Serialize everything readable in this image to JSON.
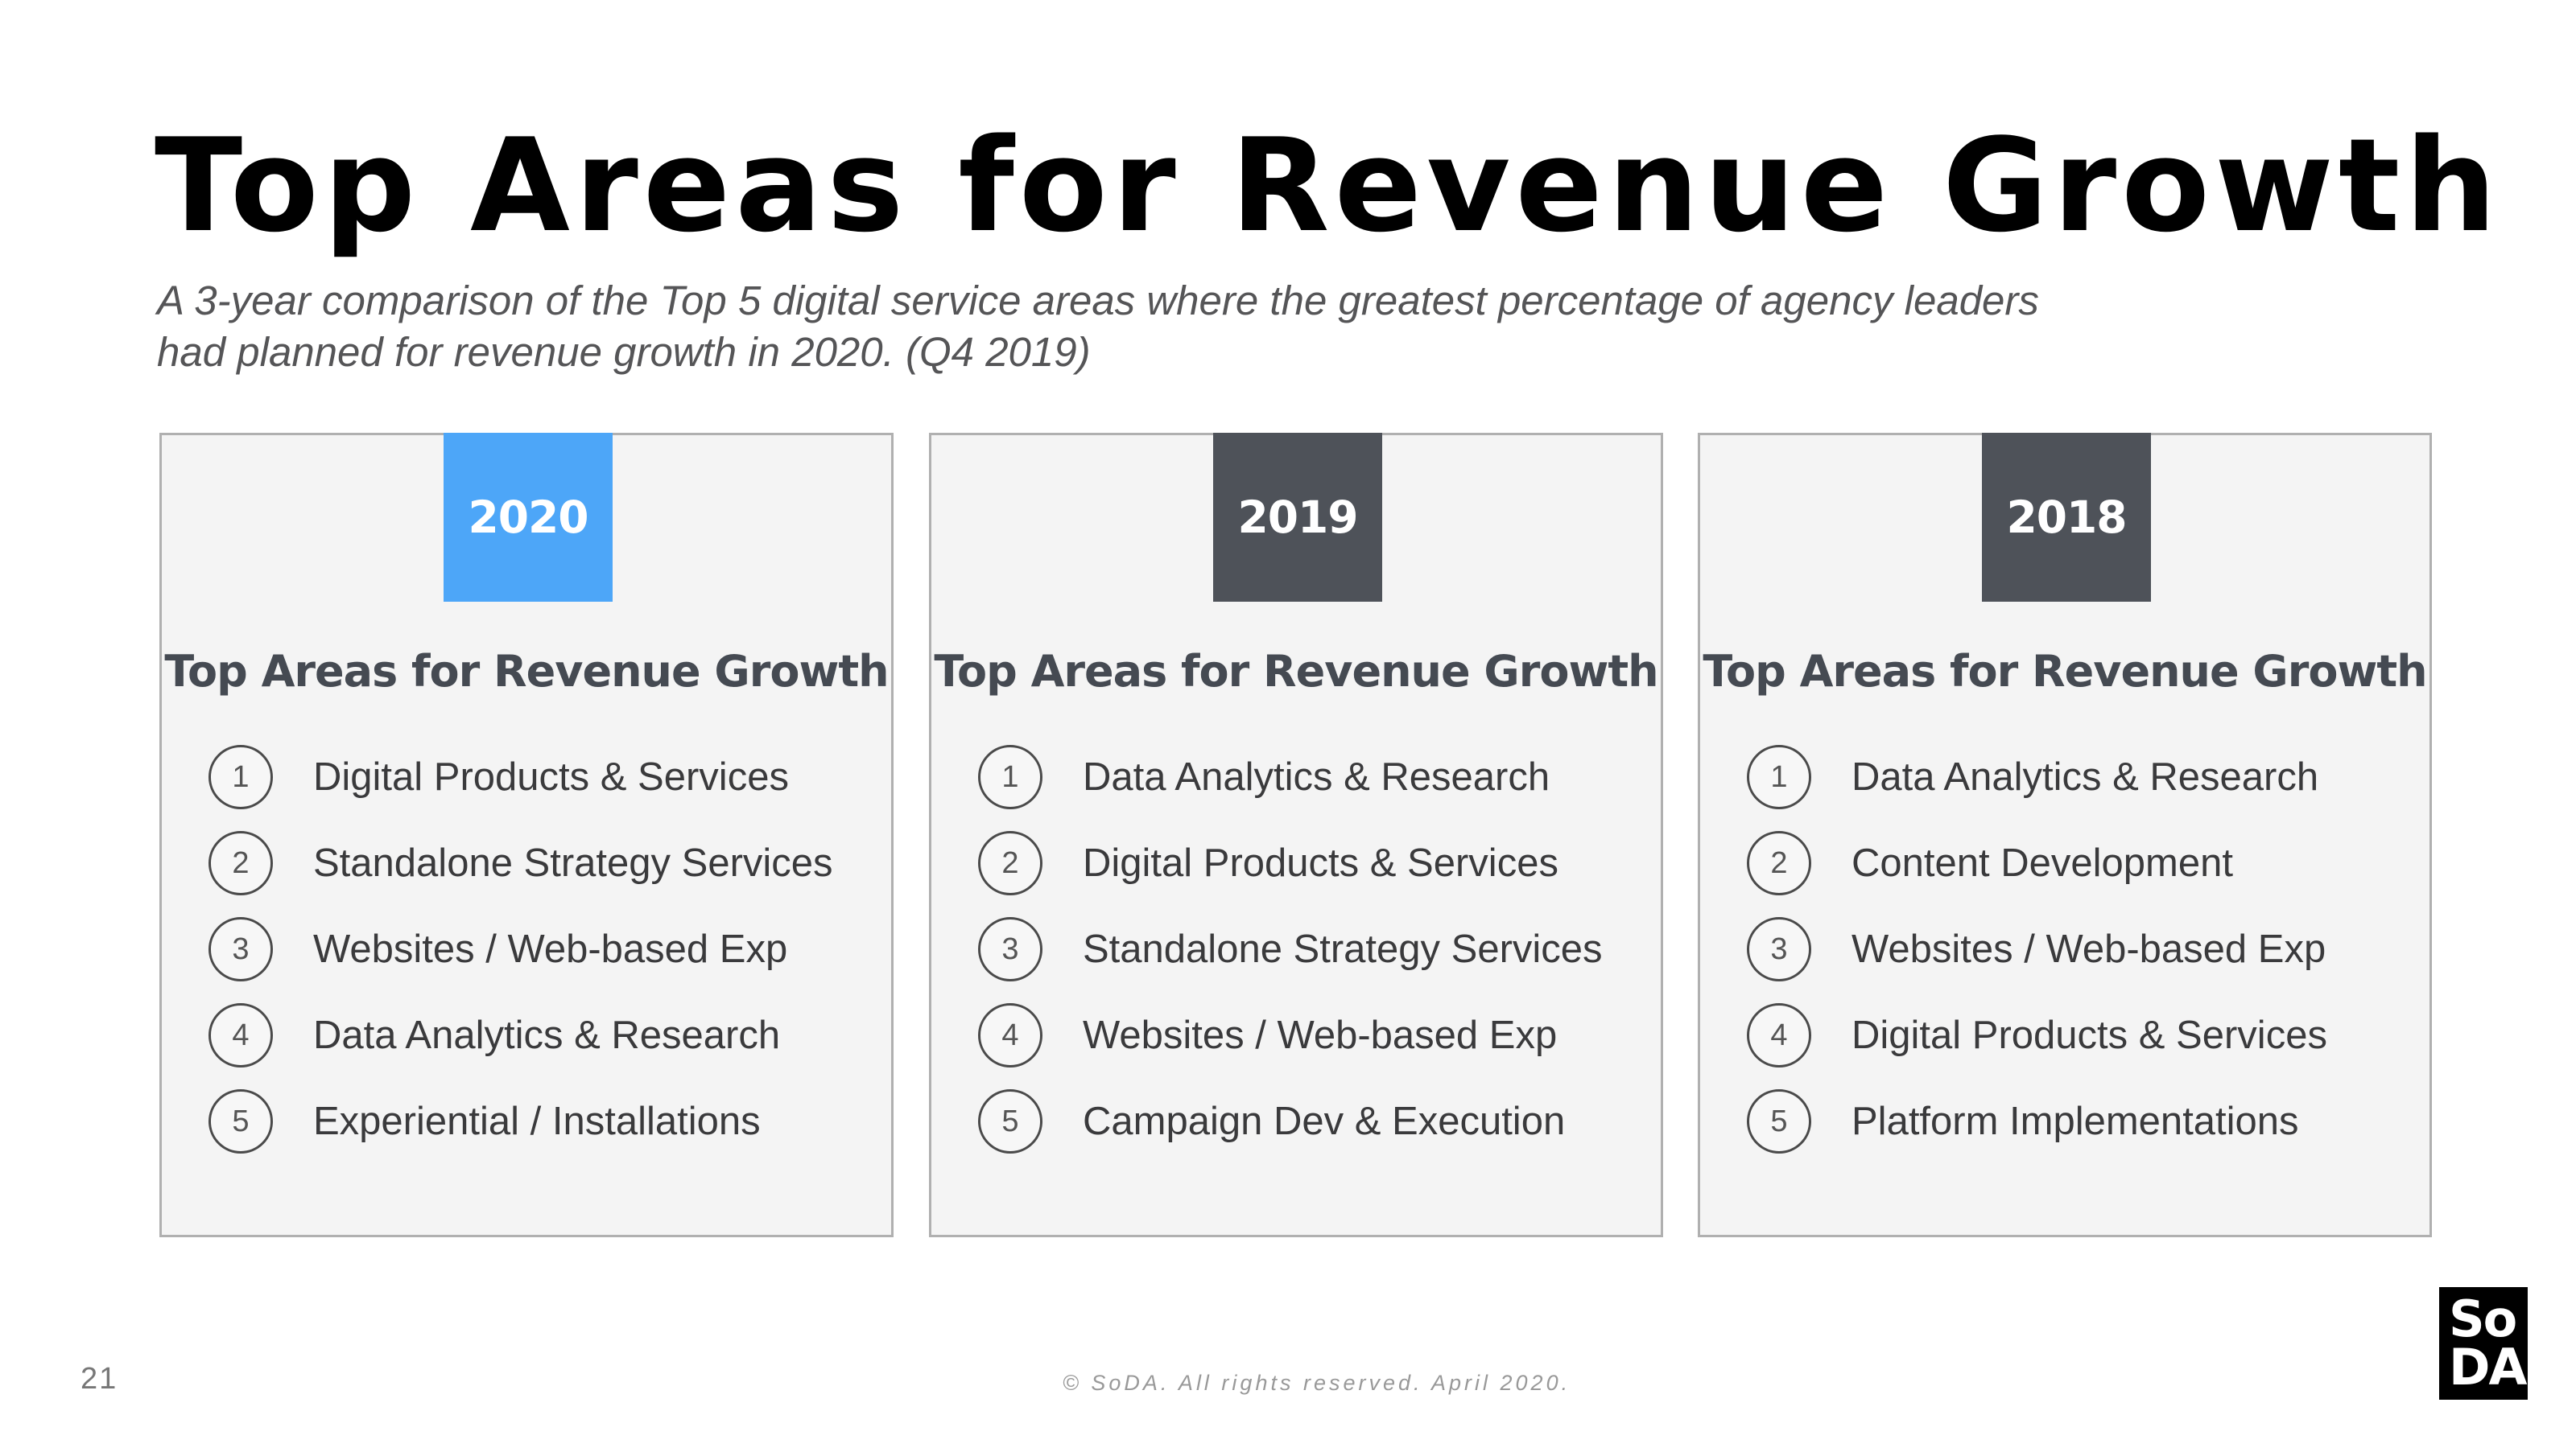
{
  "page": {
    "title": "Top Areas for Revenue Growth",
    "subtitle_line1": "A 3-year comparison of the Top 5 digital service areas where the greatest percentage of agency leaders",
    "subtitle_line2": "had planned for revenue growth in 2020. (Q4 2019)",
    "page_number": "21",
    "copyright": "© SoDA. All rights reserved. April 2020.",
    "logo_line1": "So",
    "logo_line2": "DA"
  },
  "colors": {
    "accent_blue": "#4da6f8",
    "tab_dark": "#4e5259"
  },
  "cards": [
    {
      "year": "2020",
      "heading": "Top Areas for Revenue Growth",
      "items": [
        {
          "rank": "1",
          "label": "Digital Products & Services"
        },
        {
          "rank": "2",
          "label": "Standalone Strategy Services"
        },
        {
          "rank": "3",
          "label": "Websites / Web-based Exp"
        },
        {
          "rank": "4",
          "label": "Data Analytics & Research"
        },
        {
          "rank": "5",
          "label": "Experiential / Installations"
        }
      ]
    },
    {
      "year": "2019",
      "heading": "Top Areas for Revenue Growth",
      "items": [
        {
          "rank": "1",
          "label": "Data Analytics & Research"
        },
        {
          "rank": "2",
          "label": "Digital Products & Services"
        },
        {
          "rank": "3",
          "label": "Standalone Strategy Services"
        },
        {
          "rank": "4",
          "label": "Websites / Web-based Exp"
        },
        {
          "rank": "5",
          "label": "Campaign Dev & Execution"
        }
      ]
    },
    {
      "year": "2018",
      "heading": "Top Areas for Revenue Growth",
      "items": [
        {
          "rank": "1",
          "label": "Data Analytics & Research"
        },
        {
          "rank": "2",
          "label": "Content Development"
        },
        {
          "rank": "3",
          "label": "Websites / Web-based Exp"
        },
        {
          "rank": "4",
          "label": "Digital Products & Services"
        },
        {
          "rank": "5",
          "label": "Platform Implementations"
        }
      ]
    }
  ]
}
